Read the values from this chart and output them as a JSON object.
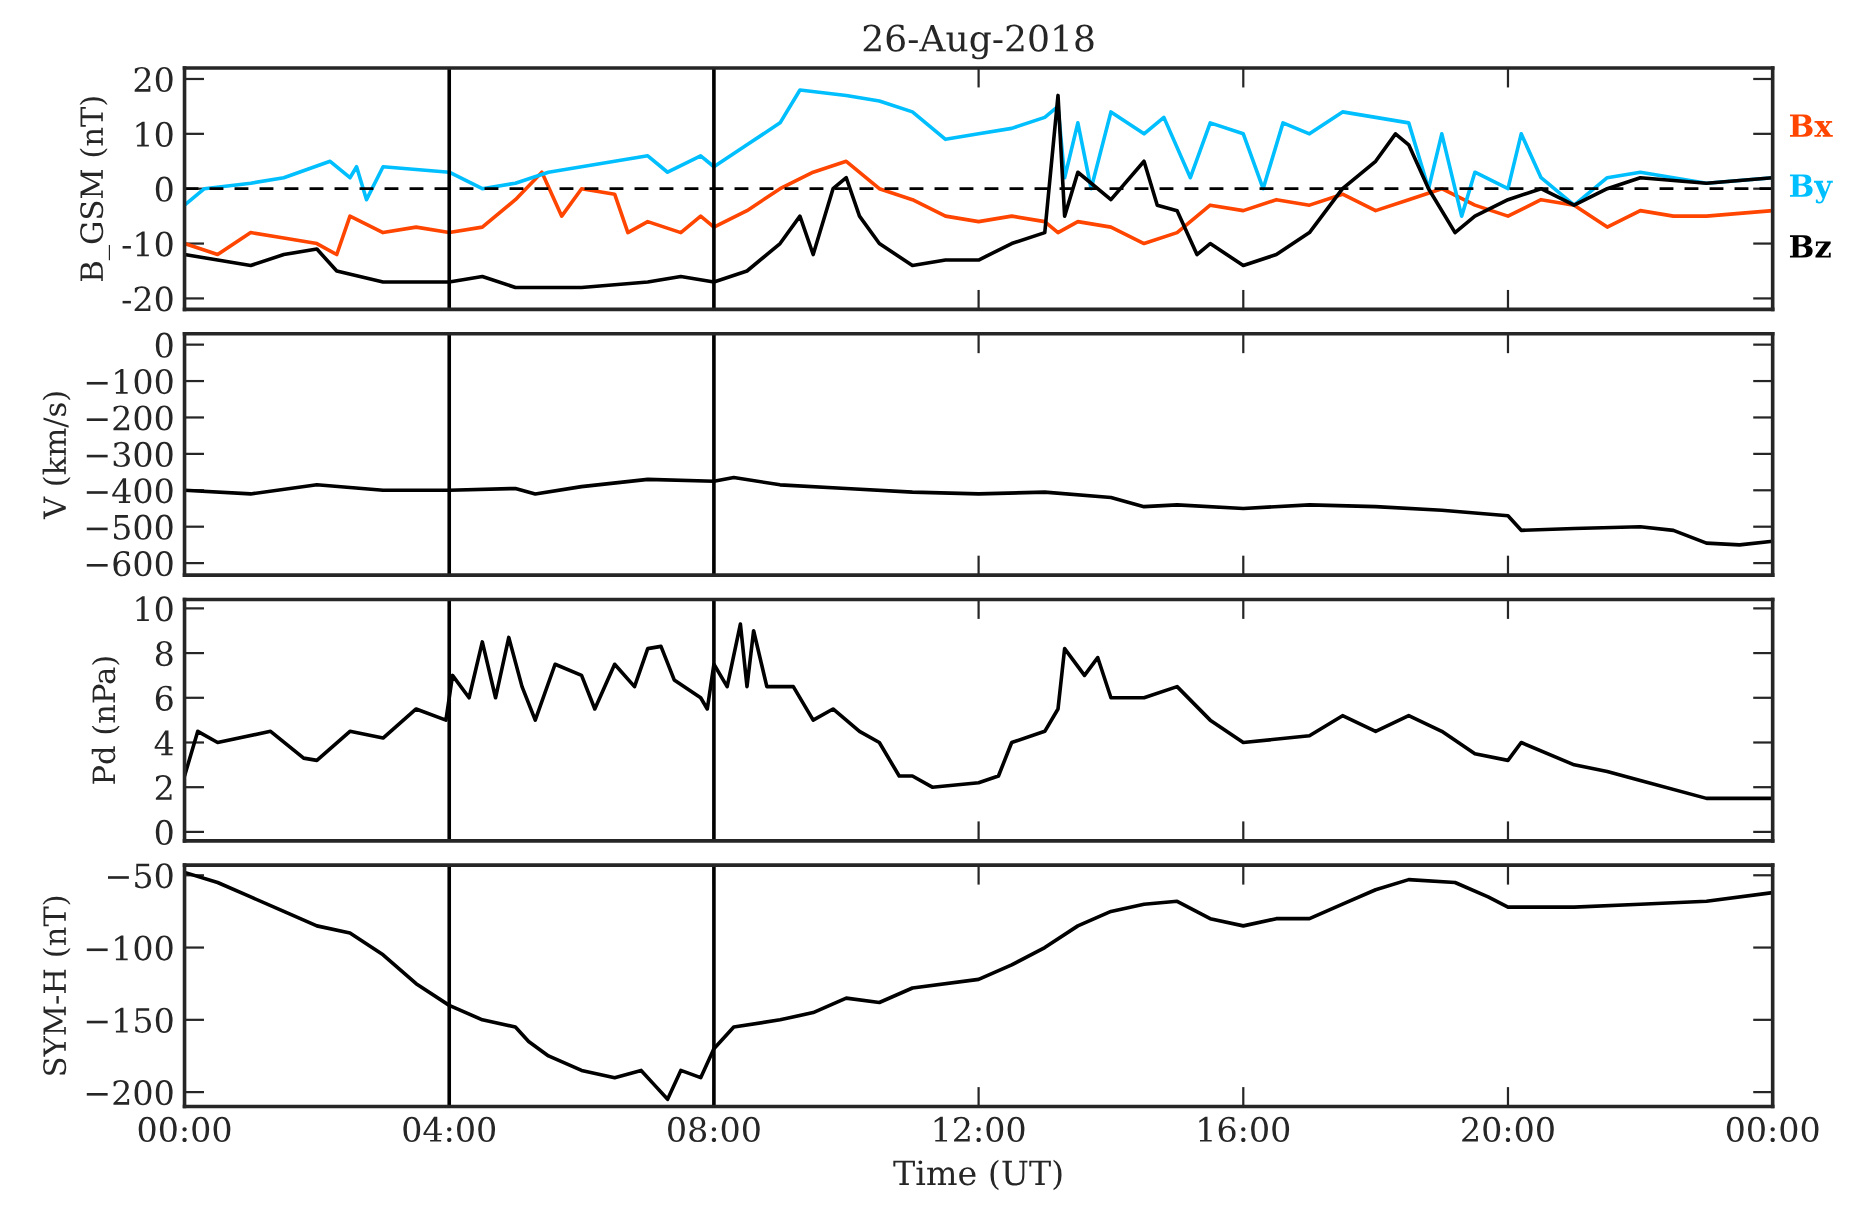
{
  "chart_data": [
    {
      "type": "line",
      "title": "26-Aug-2018",
      "ylabel": "B_GSM (nT)",
      "xlim": [
        0,
        24
      ],
      "xticks": [
        {
          "value": 0,
          "label": null
        },
        {
          "value": 4,
          "label": null
        },
        {
          "value": 8,
          "label": null
        },
        {
          "value": 12,
          "label": null
        },
        {
          "value": 16,
          "label": null
        },
        {
          "value": 20,
          "label": null
        },
        {
          "value": 24,
          "label": null
        }
      ],
      "ylim": [
        -22,
        22
      ],
      "yticks": [
        -20,
        -10,
        0,
        10,
        20
      ],
      "tick_labels": "y",
      "legend": "right",
      "ref_lines": [
        {
          "axis": "y",
          "value": 0,
          "line_style": "dashed"
        },
        {
          "axis": "x",
          "value": 4
        },
        {
          "axis": "x",
          "value": 8
        }
      ],
      "series": [
        {
          "name": "Bx",
          "color": "#ff4500",
          "x": [
            0,
            0.5,
            1,
            1.5,
            2,
            2.3,
            2.5,
            3,
            3.5,
            4,
            4.5,
            5,
            5.4,
            5.7,
            6,
            6.5,
            6.7,
            7,
            7.5,
            7.8,
            8,
            8.5,
            9,
            9.5,
            10,
            10.5,
            11,
            11.5,
            12,
            12.5,
            13,
            13.2,
            13.5,
            14,
            14.5,
            15,
            15.5,
            16,
            16.5,
            17,
            17.5,
            18,
            18.5,
            19,
            19.5,
            20,
            20.5,
            21,
            21.5,
            22,
            22.5,
            23,
            24
          ],
          "values": [
            -10,
            -12,
            -8,
            -9,
            -10,
            -12,
            -5,
            -8,
            -7,
            -8,
            -7,
            -2,
            3,
            -5,
            0,
            -1,
            -8,
            -6,
            -8,
            -5,
            -7,
            -4,
            0,
            3,
            5,
            0,
            -2,
            -5,
            -6,
            -5,
            -6,
            -8,
            -6,
            -7,
            -10,
            -8,
            -3,
            -4,
            -2,
            -3,
            -1,
            -4,
            -2,
            0,
            -3,
            -5,
            -2,
            -3,
            -7,
            -4,
            -5,
            -5,
            -4
          ]
        },
        {
          "name": "By",
          "color": "#00bfff",
          "x": [
            0,
            0.3,
            1,
            1.5,
            2.2,
            2.5,
            2.6,
            2.75,
            3,
            4,
            4.5,
            5,
            5.5,
            6,
            6.5,
            7,
            7.3,
            7.8,
            8,
            8.5,
            9,
            9.3,
            10,
            10.5,
            11,
            11.5,
            12,
            12.5,
            13,
            13.2,
            13.3,
            13.5,
            13.7,
            14,
            14.5,
            14.8,
            15.2,
            15.5,
            16,
            16.3,
            16.6,
            17,
            17.5,
            18,
            18.5,
            18.8,
            19,
            19.3,
            19.5,
            20,
            20.2,
            20.5,
            21,
            21.5,
            22,
            22.5,
            23,
            24
          ],
          "values": [
            -3,
            0,
            1,
            2,
            5,
            2,
            4,
            -2,
            4,
            3,
            0,
            1,
            3,
            4,
            5,
            6,
            3,
            6,
            4,
            8,
            12,
            18,
            17,
            16,
            14,
            9,
            10,
            11,
            13,
            15,
            2,
            12,
            0,
            14,
            10,
            13,
            2,
            12,
            10,
            0,
            12,
            10,
            14,
            13,
            12,
            0,
            10,
            -5,
            3,
            0,
            10,
            2,
            -3,
            2,
            3,
            2,
            1,
            2
          ]
        },
        {
          "name": "Bz",
          "color": "#000000",
          "x": [
            0,
            0.5,
            1,
            1.5,
            2,
            2.3,
            3,
            4,
            4.5,
            5,
            6,
            7,
            7.5,
            8,
            8.5,
            9,
            9.3,
            9.5,
            9.8,
            10,
            10.2,
            10.5,
            11,
            11.5,
            12,
            12.5,
            13,
            13.2,
            13.3,
            13.5,
            14,
            14.5,
            14.7,
            15,
            15.3,
            15.5,
            16,
            16.5,
            17,
            17.5,
            18,
            18.3,
            18.5,
            18.8,
            19.2,
            19.5,
            20,
            20.5,
            21,
            21.5,
            22,
            23,
            24
          ],
          "values": [
            -12,
            -13,
            -14,
            -12,
            -11,
            -15,
            -17,
            -17,
            -16,
            -18,
            -18,
            -17,
            -16,
            -17,
            -15,
            -10,
            -5,
            -12,
            0,
            2,
            -5,
            -10,
            -14,
            -13,
            -13,
            -10,
            -8,
            17,
            -5,
            3,
            -2,
            5,
            -3,
            -4,
            -12,
            -10,
            -14,
            -12,
            -8,
            0,
            5,
            10,
            8,
            0,
            -8,
            -5,
            -2,
            0,
            -3,
            0,
            2,
            1,
            2
          ]
        }
      ]
    },
    {
      "type": "line",
      "ylabel": "V (km/s)",
      "xlim": [
        0,
        24
      ],
      "xticks": [
        {
          "value": 0,
          "label": null
        },
        {
          "value": 4,
          "label": null
        },
        {
          "value": 8,
          "label": null
        },
        {
          "value": 12,
          "label": null
        },
        {
          "value": 16,
          "label": null
        },
        {
          "value": 20,
          "label": null
        },
        {
          "value": 24,
          "label": null
        }
      ],
      "ylim": [
        -633,
        30
      ],
      "yticks": [
        {
          "value": 0,
          "label": "0"
        },
        {
          "value": -100,
          "label": "−100"
        },
        {
          "value": -200,
          "label": "−200"
        },
        {
          "value": -300,
          "label": "−300"
        },
        {
          "value": -400,
          "label": "−400"
        },
        {
          "value": -500,
          "label": "−500"
        },
        {
          "value": -600,
          "label": "−600"
        }
      ],
      "tick_labels": "y",
      "ref_lines": [
        {
          "axis": "x",
          "value": 4
        },
        {
          "axis": "x",
          "value": 8
        }
      ],
      "series": [
        {
          "color": "#000000",
          "x": [
            0,
            1,
            2,
            3,
            4,
            5,
            5.3,
            6,
            7,
            8,
            8.3,
            9,
            10,
            11,
            12,
            13,
            14,
            14.5,
            15,
            16,
            17,
            18,
            19,
            20,
            20.2,
            21,
            22,
            22.5,
            23,
            23.5,
            24
          ],
          "values": [
            -400,
            -410,
            -385,
            -400,
            -400,
            -395,
            -410,
            -390,
            -370,
            -375,
            -365,
            -385,
            -395,
            -405,
            -410,
            -405,
            -420,
            -445,
            -440,
            -450,
            -440,
            -445,
            -455,
            -470,
            -510,
            -505,
            -500,
            -510,
            -545,
            -550,
            -540
          ]
        }
      ]
    },
    {
      "type": "line",
      "ylabel": "Pd (nPa)",
      "xlim": [
        0,
        24
      ],
      "xticks": [
        {
          "value": 0,
          "label": null
        },
        {
          "value": 4,
          "label": null
        },
        {
          "value": 8,
          "label": null
        },
        {
          "value": 12,
          "label": null
        },
        {
          "value": 16,
          "label": null
        },
        {
          "value": 20,
          "label": null
        },
        {
          "value": 24,
          "label": null
        }
      ],
      "ylim": [
        -0.4,
        10.4
      ],
      "yticks": [
        0,
        2,
        4,
        6,
        8,
        10
      ],
      "tick_labels": "y",
      "ref_lines": [
        {
          "axis": "x",
          "value": 4
        },
        {
          "axis": "x",
          "value": 8
        }
      ],
      "series": [
        {
          "color": "#000000",
          "x": [
            0,
            0.2,
            0.5,
            1.3,
            1.8,
            2.0,
            2.5,
            3,
            3.5,
            3.95,
            4.05,
            4.3,
            4.5,
            4.7,
            4.9,
            5.1,
            5.3,
            5.6,
            6,
            6.2,
            6.5,
            6.8,
            7.0,
            7.2,
            7.4,
            7.8,
            7.9,
            8.0,
            8.2,
            8.4,
            8.5,
            8.6,
            8.8,
            9.2,
            9.5,
            9.8,
            10.2,
            10.5,
            10.8,
            11,
            11.3,
            12,
            12.3,
            12.5,
            13.0,
            13.2,
            13.3,
            13.6,
            13.8,
            14,
            14.5,
            15,
            15.5,
            16,
            17,
            17.5,
            18,
            18.5,
            19,
            19.5,
            20,
            20.2,
            21,
            21.5,
            22,
            23,
            24
          ],
          "values": [
            2.5,
            4.5,
            4,
            4.5,
            3.3,
            3.2,
            4.5,
            4.2,
            5.5,
            5,
            7,
            6,
            8.5,
            6,
            8.7,
            6.5,
            5,
            7.5,
            7,
            5.5,
            7.5,
            6.5,
            8.2,
            8.3,
            6.8,
            6,
            5.5,
            7.5,
            6.5,
            9.3,
            6.5,
            9,
            6.5,
            6.5,
            5,
            5.5,
            4.5,
            4,
            2.5,
            2.5,
            2,
            2.2,
            2.5,
            4,
            4.5,
            5.5,
            8.2,
            7,
            7.8,
            6,
            6,
            6.5,
            5,
            4,
            4.3,
            5.2,
            4.5,
            5.2,
            4.5,
            3.5,
            3.2,
            4,
            3,
            2.7,
            2.3,
            1.5,
            1.5
          ]
        }
      ]
    },
    {
      "type": "line",
      "xlabel": "Time (UT)",
      "ylabel": "SYM-H (nT)",
      "xlim": [
        0,
        24
      ],
      "xticks": [
        {
          "value": 0,
          "label": "00:00"
        },
        {
          "value": 4,
          "label": "04:00"
        },
        {
          "value": 8,
          "label": "08:00"
        },
        {
          "value": 12,
          "label": "12:00"
        },
        {
          "value": 16,
          "label": "16:00"
        },
        {
          "value": 20,
          "label": "20:00"
        },
        {
          "value": 24,
          "label": "00:00"
        }
      ],
      "ylim": [
        -210,
        -43
      ],
      "yticks": [
        {
          "value": -50,
          "label": "−50"
        },
        {
          "value": -100,
          "label": "−100"
        },
        {
          "value": -150,
          "label": "−150"
        },
        {
          "value": -200,
          "label": "−200"
        }
      ],
      "ref_lines": [
        {
          "axis": "x",
          "value": 4
        },
        {
          "axis": "x",
          "value": 8
        }
      ],
      "series": [
        {
          "color": "#000000",
          "x": [
            0,
            0.5,
            1,
            1.5,
            2,
            2.5,
            3,
            3.5,
            4,
            4.5,
            5,
            5.2,
            5.5,
            6,
            6.5,
            6.9,
            7.1,
            7.3,
            7.5,
            7.8,
            8,
            8.3,
            9,
            9.5,
            10,
            10.5,
            11,
            12,
            12.5,
            13,
            13.5,
            14,
            14.5,
            15,
            15.5,
            16,
            16.5,
            17,
            17.5,
            18,
            18.5,
            19.2,
            19.7,
            20,
            21,
            22,
            23,
            24
          ],
          "values": [
            -48,
            -55,
            -65,
            -75,
            -85,
            -90,
            -105,
            -125,
            -140,
            -150,
            -155,
            -165,
            -175,
            -185,
            -190,
            -185,
            -195,
            -205,
            -185,
            -190,
            -170,
            -155,
            -150,
            -145,
            -135,
            -138,
            -128,
            -122,
            -112,
            -100,
            -85,
            -75,
            -70,
            -68,
            -80,
            -85,
            -80,
            -80,
            -70,
            -60,
            -53,
            -55,
            -65,
            -72,
            -72,
            -70,
            -68,
            -62
          ]
        }
      ]
    }
  ]
}
